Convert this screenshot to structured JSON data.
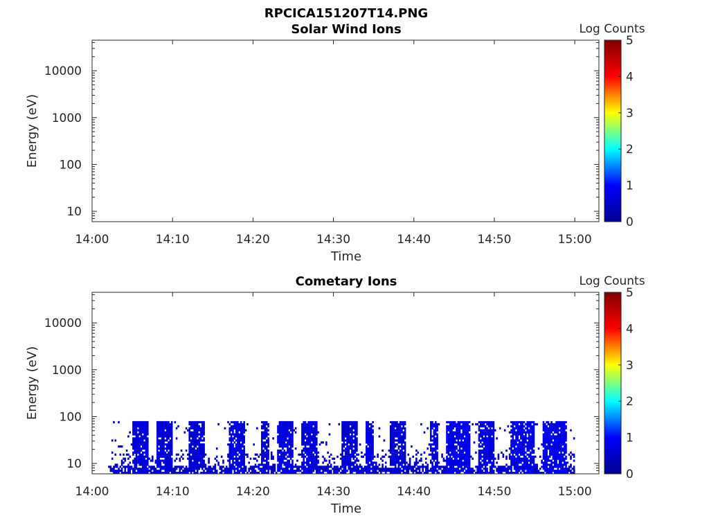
{
  "figure_title": "RPCICA151207T14.PNG",
  "colors": {
    "colormap": [
      "#00008f",
      "#0000ff",
      "#00ffff",
      "#ffff00",
      "#ff0000",
      "#800000"
    ],
    "axis": "#262626"
  },
  "chart_data": [
    {
      "type": "heatmap",
      "title": "Solar Wind Ions",
      "xlabel": "Time",
      "ylabel": "Energy (eV)",
      "y_scale": "log",
      "ylim": [
        6,
        45000
      ],
      "xlim": [
        "14:00",
        "15:03"
      ],
      "x_ticks": [
        "14:00",
        "14:10",
        "14:20",
        "14:30",
        "14:40",
        "14:50",
        "15:00"
      ],
      "y_ticks": [
        10,
        100,
        1000,
        10000
      ],
      "y_tick_labels": [
        "10",
        "100",
        "1000",
        "10000"
      ],
      "colorbar": {
        "label": "Log Counts",
        "range": [
          0,
          5
        ],
        "ticks": [
          "0",
          "1",
          "2",
          "3",
          "4",
          "5"
        ]
      },
      "bursts": []
    },
    {
      "type": "heatmap",
      "title": "Cometary Ions",
      "xlabel": "Time",
      "ylabel": "Energy (eV)",
      "y_scale": "log",
      "ylim": [
        6,
        45000
      ],
      "xlim": [
        "14:00",
        "15:03"
      ],
      "x_ticks": [
        "14:00",
        "14:10",
        "14:20",
        "14:30",
        "14:40",
        "14:50",
        "15:00"
      ],
      "y_ticks": [
        10,
        100,
        1000,
        10000
      ],
      "y_tick_labels": [
        "10",
        "100",
        "1000",
        "10000"
      ],
      "colorbar": {
        "label": "Log Counts",
        "range": [
          0,
          5
        ],
        "ticks": [
          "0",
          "1",
          "2",
          "3",
          "4",
          "5"
        ]
      },
      "data_time_range": [
        "14:02",
        "15:00"
      ],
      "energy_range_eV": [
        6,
        80
      ],
      "bursts": [
        {
          "start": "14:05",
          "end": "14:07",
          "log_counts": 0.7
        },
        {
          "start": "14:08",
          "end": "14:10",
          "log_counts": 0.6
        },
        {
          "start": "14:12",
          "end": "14:14",
          "log_counts": 0.6
        },
        {
          "start": "14:17",
          "end": "14:19",
          "log_counts": 0.7
        },
        {
          "start": "14:21",
          "end": "14:22",
          "log_counts": 0.6
        },
        {
          "start": "14:23",
          "end": "14:25",
          "log_counts": 0.7
        },
        {
          "start": "14:26",
          "end": "14:28",
          "log_counts": 0.7
        },
        {
          "start": "14:31",
          "end": "14:33",
          "log_counts": 0.6
        },
        {
          "start": "14:34",
          "end": "14:35",
          "log_counts": 0.7
        },
        {
          "start": "14:37",
          "end": "14:39",
          "log_counts": 0.6
        },
        {
          "start": "14:42",
          "end": "14:43",
          "log_counts": 0.7
        },
        {
          "start": "14:44",
          "end": "14:47",
          "log_counts": 0.8
        },
        {
          "start": "14:48",
          "end": "14:50",
          "log_counts": 0.7
        },
        {
          "start": "14:52",
          "end": "14:55",
          "log_counts": 0.8
        },
        {
          "start": "14:56",
          "end": "14:59",
          "log_counts": 0.8
        }
      ]
    }
  ]
}
